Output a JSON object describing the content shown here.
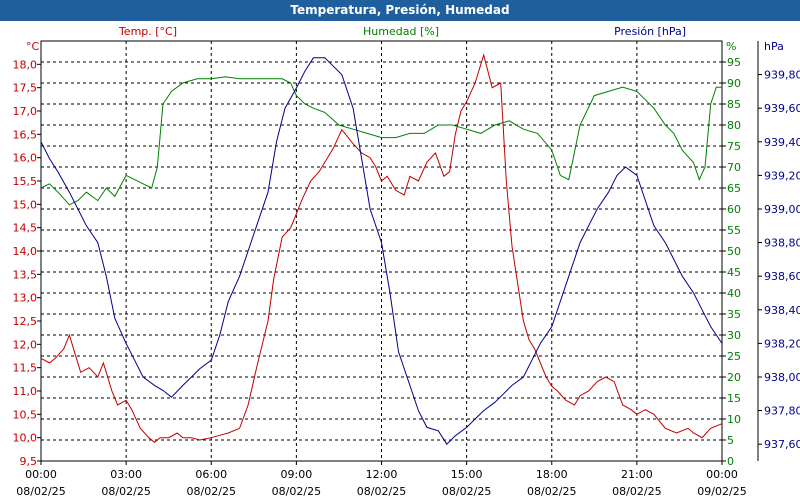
{
  "chart_data": {
    "type": "line",
    "title": "Temperatura, Presión, Humedad",
    "x_tick_labels": [
      {
        "time": "00:00",
        "date": "08/02/25"
      },
      {
        "time": "03:00",
        "date": "08/02/25"
      },
      {
        "time": "06:00",
        "date": "08/02/25"
      },
      {
        "time": "09:00",
        "date": "08/02/25"
      },
      {
        "time": "12:00",
        "date": "08/02/25"
      },
      {
        "time": "15:00",
        "date": "08/02/25"
      },
      {
        "time": "18:00",
        "date": "08/02/25"
      },
      {
        "time": "21:00",
        "date": "08/02/25"
      },
      {
        "time": "00:00",
        "date": "09/02/25"
      }
    ],
    "xlim": [
      0,
      24
    ],
    "grid": true,
    "axes": {
      "temp": {
        "label": "Temp. [°C]",
        "unit": "°C",
        "color": "#c00000",
        "range": [
          9.5,
          18.5
        ],
        "ticks": [
          "9,5",
          "10,0",
          "10,5",
          "11,0",
          "11,5",
          "12,0",
          "12,5",
          "13,0",
          "13,5",
          "14,0",
          "14,5",
          "15,0",
          "15,5",
          "16,0",
          "16,5",
          "17,0",
          "17,5",
          "18,0"
        ]
      },
      "hum": {
        "label": "Humedad [%]",
        "unit": "%",
        "color": "#008000",
        "range": [
          0,
          100
        ],
        "ticks": [
          "0",
          "5",
          "10",
          "15",
          "20",
          "25",
          "30",
          "35",
          "40",
          "45",
          "50",
          "55",
          "60",
          "65",
          "70",
          "75",
          "80",
          "85",
          "90",
          "95"
        ]
      },
      "pres": {
        "label": "Presión [hPa]",
        "unit": "hPa",
        "color": "#00008b",
        "range": [
          937.5,
          940.0
        ],
        "ticks": [
          "937,60",
          "937,80",
          "938,00",
          "938,20",
          "938,40",
          "938,60",
          "938,80",
          "939,00",
          "939,20",
          "939,40",
          "939,60",
          "939,80"
        ]
      }
    },
    "series": [
      {
        "name": "Temperatura",
        "axis": "temp",
        "color": "#c00000",
        "x": [
          0,
          0.3,
          0.5,
          0.8,
          1.0,
          1.2,
          1.4,
          1.7,
          2.0,
          2.2,
          2.5,
          2.7,
          3.0,
          3.2,
          3.5,
          3.8,
          4.0,
          4.2,
          4.5,
          4.8,
          5.0,
          5.3,
          5.6,
          6.0,
          6.3,
          6.6,
          7.0,
          7.3,
          7.6,
          8.0,
          8.2,
          8.5,
          8.8,
          9.0,
          9.2,
          9.5,
          9.8,
          10.0,
          10.3,
          10.6,
          11.0,
          11.3,
          11.6,
          11.8,
          12.0,
          12.2,
          12.5,
          12.8,
          13.0,
          13.3,
          13.6,
          13.9,
          14.2,
          14.4,
          14.6,
          14.8,
          15.0,
          15.3,
          15.6,
          15.9,
          16.2,
          16.4,
          16.6,
          16.8,
          17.0,
          17.2,
          17.4,
          17.6,
          17.8,
          18.0,
          18.2,
          18.5,
          18.8,
          19.0,
          19.3,
          19.6,
          19.9,
          20.2,
          20.5,
          20.8,
          21.0,
          21.3,
          21.6,
          22.0,
          22.4,
          22.8,
          23.0,
          23.3,
          23.6,
          24.0
        ],
        "values": [
          11.7,
          11.6,
          11.7,
          11.9,
          12.2,
          11.8,
          11.4,
          11.5,
          11.3,
          11.6,
          11.0,
          10.7,
          10.8,
          10.6,
          10.2,
          10.0,
          9.9,
          10.0,
          10.0,
          10.1,
          10.0,
          10.0,
          9.95,
          10.0,
          10.05,
          10.1,
          10.2,
          10.7,
          11.5,
          12.5,
          13.4,
          14.3,
          14.5,
          14.8,
          15.1,
          15.5,
          15.7,
          15.9,
          16.2,
          16.6,
          16.3,
          16.1,
          16.0,
          15.8,
          15.5,
          15.6,
          15.3,
          15.2,
          15.6,
          15.5,
          15.9,
          16.1,
          15.6,
          15.7,
          16.5,
          17.0,
          17.2,
          17.6,
          18.2,
          17.5,
          17.6,
          15.5,
          14.1,
          13.3,
          12.5,
          12.1,
          11.9,
          11.6,
          11.3,
          11.1,
          11.0,
          10.8,
          10.7,
          10.9,
          11.0,
          11.2,
          11.3,
          11.2,
          10.7,
          10.6,
          10.5,
          10.6,
          10.5,
          10.2,
          10.1,
          10.2,
          10.1,
          10.0,
          10.2,
          10.3
        ]
      },
      {
        "name": "Humedad",
        "axis": "hum",
        "color": "#008000",
        "x": [
          0,
          0.3,
          0.6,
          1.0,
          1.3,
          1.6,
          2.0,
          2.3,
          2.6,
          3.0,
          3.3,
          3.6,
          3.9,
          4.1,
          4.3,
          4.6,
          5.0,
          5.5,
          6.0,
          6.5,
          7.0,
          7.5,
          8.0,
          8.5,
          8.8,
          9.0,
          9.3,
          9.6,
          10.0,
          10.5,
          11.0,
          11.5,
          12.0,
          12.5,
          13.0,
          13.5,
          14.0,
          14.5,
          15.0,
          15.5,
          16.0,
          16.5,
          17.0,
          17.5,
          18.0,
          18.3,
          18.6,
          19.0,
          19.5,
          20.0,
          20.5,
          21.0,
          21.3,
          21.6,
          22.0,
          22.3,
          22.6,
          23.0,
          23.2,
          23.4,
          23.6,
          23.8,
          24.0
        ],
        "values": [
          65,
          66,
          64,
          61,
          62,
          64,
          62,
          65,
          63,
          68,
          67,
          66,
          65,
          70,
          85,
          88,
          90,
          91,
          91,
          91.5,
          91,
          91,
          91,
          91,
          90,
          87,
          85,
          84,
          83,
          80,
          79,
          78,
          77,
          77,
          78,
          78,
          80,
          80,
          79,
          78,
          80,
          81,
          79,
          78,
          74,
          68,
          67,
          80,
          87,
          88,
          89,
          88,
          86,
          84,
          80,
          78,
          74,
          71,
          67,
          70,
          85,
          89,
          89
        ]
      },
      {
        "name": "Presión",
        "axis": "pres",
        "color": "#00008b",
        "x": [
          0,
          0.3,
          0.6,
          1.0,
          1.3,
          1.6,
          2.0,
          2.3,
          2.6,
          3.0,
          3.3,
          3.6,
          4.0,
          4.3,
          4.6,
          5.0,
          5.3,
          5.6,
          6.0,
          6.3,
          6.6,
          7.0,
          7.3,
          7.6,
          8.0,
          8.3,
          8.6,
          9.0,
          9.3,
          9.6,
          10.0,
          10.3,
          10.6,
          11.0,
          11.3,
          11.6,
          12.0,
          12.3,
          12.6,
          13.0,
          13.3,
          13.6,
          14.0,
          14.3,
          14.6,
          15.0,
          15.3,
          15.6,
          16.0,
          16.3,
          16.6,
          17.0,
          17.3,
          17.6,
          18.0,
          18.3,
          18.6,
          19.0,
          19.3,
          19.6,
          20.0,
          20.3,
          20.6,
          21.0,
          21.3,
          21.6,
          22.0,
          22.3,
          22.6,
          23.0,
          23.3,
          23.6,
          24.0
        ],
        "values": [
          939.4,
          939.3,
          939.22,
          939.1,
          939.0,
          938.9,
          938.8,
          938.6,
          938.35,
          938.2,
          938.1,
          938.0,
          937.95,
          937.92,
          937.88,
          937.95,
          938.0,
          938.05,
          938.1,
          938.25,
          938.45,
          938.6,
          938.75,
          938.9,
          939.1,
          939.4,
          939.6,
          939.72,
          939.82,
          939.9,
          939.9,
          939.85,
          939.8,
          939.6,
          939.3,
          939.0,
          938.8,
          938.5,
          938.15,
          937.95,
          937.8,
          937.7,
          937.68,
          937.6,
          937.65,
          937.7,
          937.75,
          937.8,
          937.85,
          937.9,
          937.95,
          938.0,
          938.1,
          938.2,
          938.3,
          938.45,
          938.6,
          938.8,
          938.9,
          939.0,
          939.1,
          939.2,
          939.25,
          939.2,
          939.05,
          938.9,
          938.8,
          938.7,
          938.6,
          938.5,
          938.4,
          938.3,
          938.2
        ]
      }
    ]
  }
}
